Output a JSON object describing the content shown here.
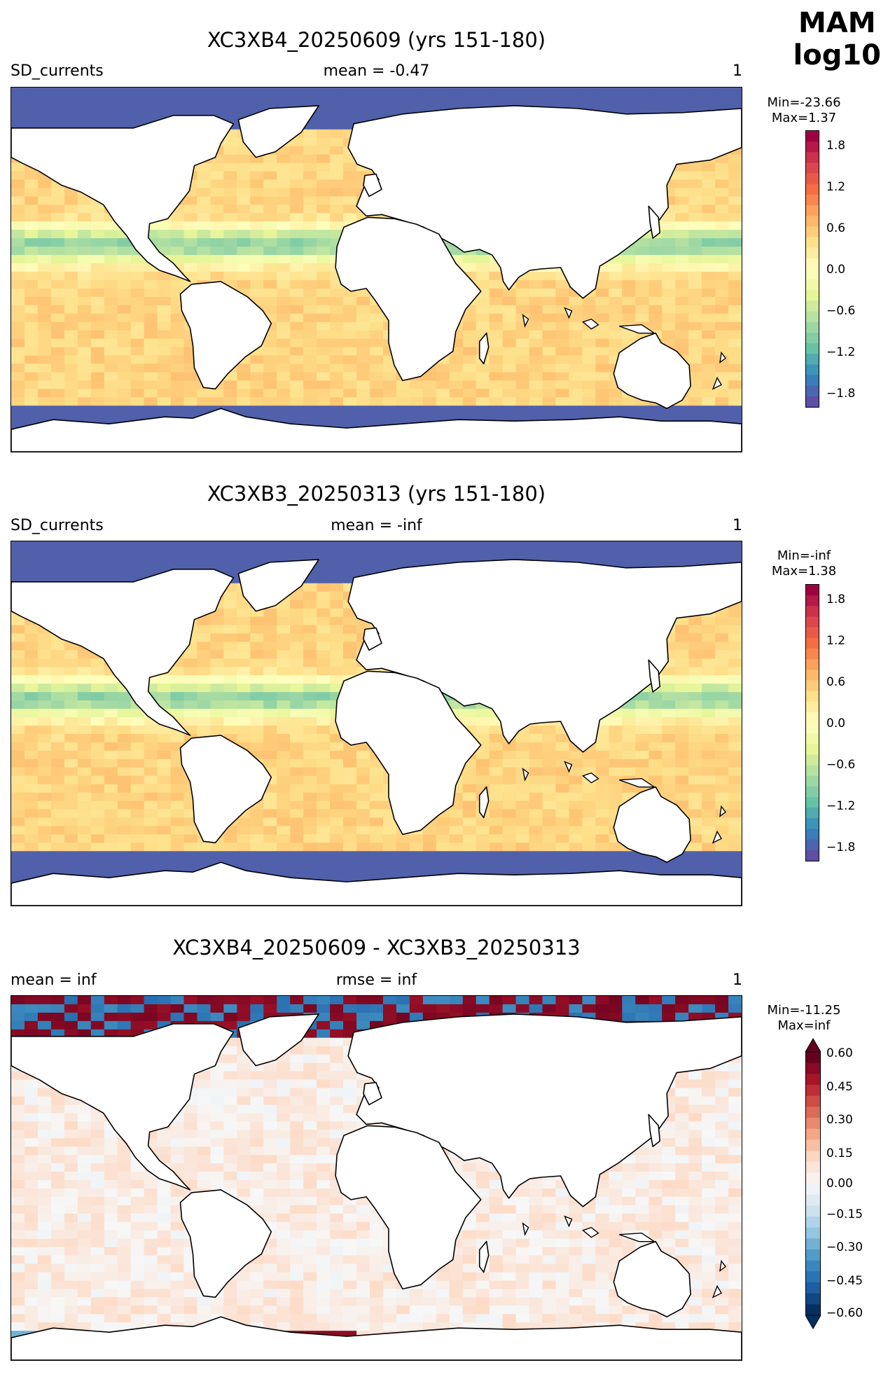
{
  "figure": {
    "season": "MAM",
    "transform": "log10"
  },
  "panels": [
    {
      "title": "XC3XB4_20250609 (yrs 151-180)",
      "left_label": "SD_currents",
      "center_label": "mean = -0.47",
      "right_label": "1",
      "min_label": "Min=-23.66",
      "max_label": "Max=1.37",
      "colormap": "Spectral_r",
      "colorbar_ticks": [
        "1.8",
        "1.2",
        "0.6",
        "0.0",
        "−0.6",
        "−1.2",
        "−1.8"
      ]
    },
    {
      "title": "XC3XB3_20250313 (yrs 151-180)",
      "left_label": "SD_currents",
      "center_label": "mean = -inf",
      "right_label": "1",
      "min_label": "Min=-inf",
      "max_label": "Max=1.38",
      "colormap": "Spectral_r",
      "colorbar_ticks": [
        "1.8",
        "1.2",
        "0.6",
        "0.0",
        "−0.6",
        "−1.2",
        "−1.8"
      ]
    },
    {
      "title": "XC3XB4_20250609 - XC3XB3_20250313",
      "left_label": "mean = inf",
      "center_label": "rmse = inf",
      "right_label": "1",
      "min_label": "Min=-11.25",
      "max_label": "Max=inf",
      "colormap": "RdBu_r",
      "colorbar_ticks": [
        "0.60",
        "0.45",
        "0.30",
        "0.15",
        "0.00",
        "−0.15",
        "−0.30",
        "−0.45",
        "−0.60"
      ]
    }
  ],
  "chart_data": [
    {
      "type": "heatmap",
      "title": "XC3XB4_20250609 (yrs 151-180)",
      "variable": "SD_currents",
      "mean": -0.47,
      "min": -23.66,
      "max": 1.37,
      "colorbar_range": [
        -1.95,
        1.95
      ],
      "colorbar_ticks": [
        -1.8,
        -1.2,
        -0.6,
        0.0,
        0.6,
        1.2,
        1.8
      ],
      "colormap": "Spectral_r"
    },
    {
      "type": "heatmap",
      "title": "XC3XB3_20250313 (yrs 151-180)",
      "variable": "SD_currents",
      "mean": "-inf",
      "min": "-inf",
      "max": 1.38,
      "colorbar_range": [
        -1.95,
        1.95
      ],
      "colorbar_ticks": [
        -1.8,
        -1.2,
        -0.6,
        0.0,
        0.6,
        1.2,
        1.8
      ],
      "colormap": "Spectral_r"
    },
    {
      "type": "heatmap",
      "title": "XC3XB4_20250609 - XC3XB3_20250313",
      "mean": "inf",
      "rmse": "inf",
      "min": -11.25,
      "max": "inf",
      "colorbar_range": [
        -0.6,
        0.6
      ],
      "colorbar_extend": "both",
      "colorbar_ticks": [
        -0.6,
        -0.45,
        -0.3,
        -0.15,
        0.0,
        0.15,
        0.3,
        0.45,
        0.6
      ],
      "colormap": "RdBu_r"
    }
  ]
}
